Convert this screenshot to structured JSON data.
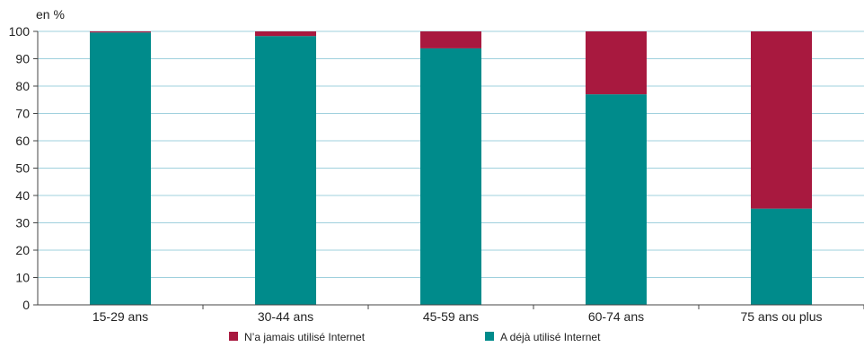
{
  "chart_data": {
    "type": "bar",
    "stacked": true,
    "y_unit_label": "en %",
    "categories": [
      "15-29 ans",
      "30-44 ans",
      "45-59 ans",
      "60-74 ans",
      "75 ans ou plus"
    ],
    "series": [
      {
        "name": "A déjà utilisé Internet",
        "values": [
          99.6,
          98.3,
          93.8,
          77.0,
          35.2
        ],
        "color": "#008b8b"
      },
      {
        "name": "N’a jamais utilisé Internet",
        "values": [
          0.4,
          1.7,
          6.2,
          23.0,
          64.8
        ],
        "color": "#a8193f"
      }
    ],
    "ylim": [
      0,
      100
    ],
    "yticks": [
      0,
      10,
      20,
      30,
      40,
      50,
      60,
      70,
      80,
      90,
      100
    ],
    "grid": true,
    "legend": {
      "placement": "bottom",
      "items": [
        {
          "label": "N’a jamais utilisé Internet",
          "color": "#a8193f"
        },
        {
          "label": "A déjà utilisé Internet",
          "color": "#008b8b"
        }
      ]
    }
  }
}
